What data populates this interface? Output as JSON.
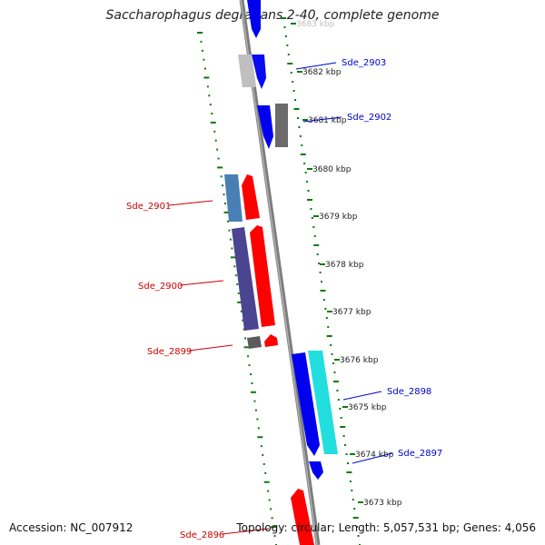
{
  "title": "Saccharophagus degradans 2-40, complete genome",
  "footer": {
    "accession": "Accession: NC_007912",
    "summary": "Topology: circular; Length: 5,057,531 bp; Genes: 4,056"
  },
  "colors": {
    "forward_label": "#0000cc",
    "reverse_label": "#cc0000",
    "tick_green": "#0a7a0a",
    "backbone": "#888888"
  },
  "kbp_labels": [
    "3683 kbp",
    "3682 kbp",
    "3681 kbp",
    "3680 kbp",
    "3679 kbp",
    "3678 kbp",
    "3677 kbp",
    "3676 kbp",
    "3675 kbp",
    "3674 kbp",
    "3673 kbp"
  ],
  "gene_labels_forward": [
    "Sde_2903",
    "Sde_2902",
    "Sde_2898",
    "Sde_2897"
  ],
  "gene_labels_reverse": [
    "Sde_2901",
    "Sde_2900",
    "Sde_2899",
    "Sde_2896"
  ]
}
